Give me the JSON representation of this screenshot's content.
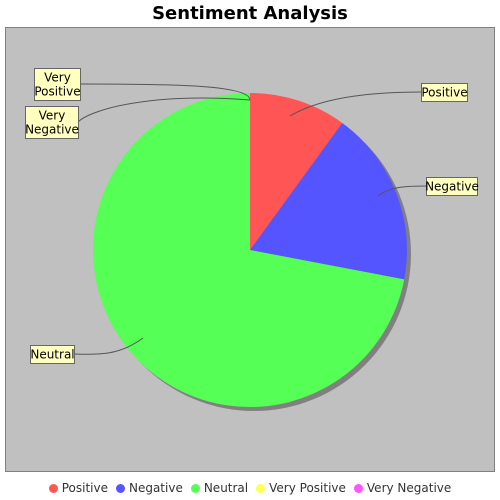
{
  "chart_data": {
    "type": "pie",
    "title": "Sentiment Analysis",
    "categories": [
      "Positive",
      "Negative",
      "Neutral",
      "Very Positive",
      "Very Negative"
    ],
    "values": [
      10,
      18,
      72,
      0,
      0
    ],
    "colors": [
      "#ff5555",
      "#5555ff",
      "#55ff55",
      "#ffff55",
      "#ff55ff"
    ],
    "labels": [
      "Positive",
      "Negative",
      "Neutral",
      "Very\nPositive",
      "Very\nNegative"
    ],
    "legend_position": "bottom",
    "plot_background": "#c0c0c0",
    "label_background": "#ffffc0"
  }
}
